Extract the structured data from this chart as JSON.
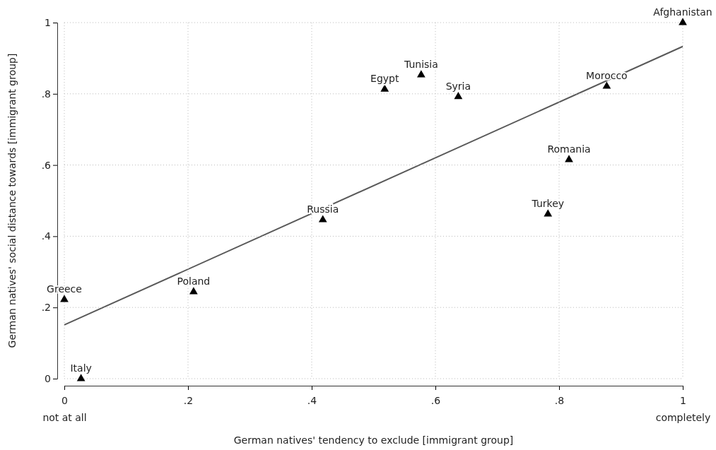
{
  "chart_data": {
    "type": "scatter",
    "xlabel": "German natives' tendency to exclude [immigrant group]",
    "ylabel": "German natives' social distance towards [immigrant group]",
    "xlim": [
      0,
      1
    ],
    "ylim": [
      0,
      1
    ],
    "xticks": [
      {
        "value": 0,
        "label": "0\nnot at all"
      },
      {
        "value": 0.2,
        "label": ".2"
      },
      {
        "value": 0.4,
        "label": ".4"
      },
      {
        "value": 0.6,
        "label": ".6"
      },
      {
        "value": 0.8,
        "label": ".8"
      },
      {
        "value": 1,
        "label": "1\ncompletely"
      }
    ],
    "yticks": [
      0,
      {
        "value": 0.2,
        "label": ".2"
      },
      {
        "value": 0.4,
        "label": ".4"
      },
      {
        "value": 0.6,
        "label": ".6"
      },
      {
        "value": 0.8,
        "label": ".8"
      },
      1
    ],
    "grid": true,
    "marker": "triangle",
    "series": [
      {
        "color": "#000000",
        "x": [
          1,
          0.877,
          0.577,
          0.518,
          0.637,
          0.816,
          0.782,
          0.418,
          0.209,
          0,
          0.027
        ],
        "values": [
          1,
          0.821,
          0.853,
          0.813,
          0.792,
          0.615,
          0.462,
          0.446,
          0.244,
          0.222,
          0
        ]
      },
      {
        "type": "line",
        "marker": "none",
        "color": "#595959",
        "x": [
          0,
          1
        ],
        "values": [
          0.151,
          0.933
        ]
      }
    ],
    "annotations": [
      {
        "text": "Afghanistan",
        "x": 1,
        "y": 1
      },
      {
        "text": "Morocco",
        "x": 0.877,
        "y": 0.821
      },
      {
        "text": "Tunisia",
        "x": 0.577,
        "y": 0.853
      },
      {
        "text": "Egypt",
        "x": 0.518,
        "y": 0.813
      },
      {
        "text": "Syria",
        "x": 0.637,
        "y": 0.792
      },
      {
        "text": "Romania",
        "x": 0.816,
        "y": 0.615
      },
      {
        "text": "Turkey",
        "x": 0.782,
        "y": 0.462
      },
      {
        "text": "Russia",
        "x": 0.418,
        "y": 0.446
      },
      {
        "text": "Poland",
        "x": 0.209,
        "y": 0.244
      },
      {
        "text": "Greece",
        "x": 0,
        "y": 0.222
      },
      {
        "text": "Italy",
        "x": 0.027,
        "y": 0
      }
    ]
  }
}
